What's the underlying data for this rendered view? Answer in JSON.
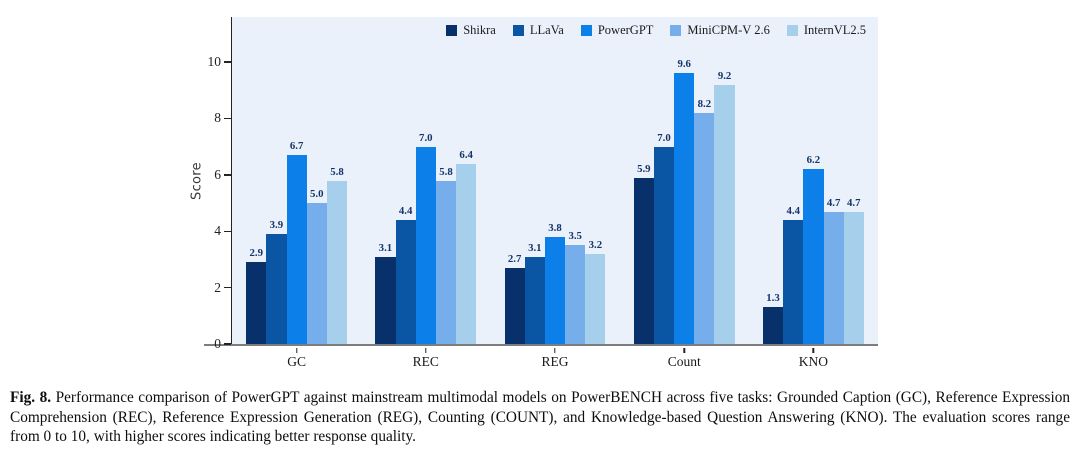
{
  "figure_caption": {
    "label": "Fig. 8.",
    "text": "Performance comparison of PowerGPT against mainstream multimodal models on PowerBENCH across five tasks: Grounded Caption (GC), Reference Expression Comprehension (REC), Reference Expression Generation (REG), Counting (COUNT), and Knowledge-based Question Answering (KNO). The evaluation scores range from 0 to 10, with higher scores indicating better response quality."
  },
  "chart_data": {
    "type": "bar",
    "title": "",
    "xlabel": "",
    "ylabel": "Score",
    "categories": [
      "GC",
      "REC",
      "REG",
      "Count",
      "KNO"
    ],
    "series": [
      {
        "name": "Shikra",
        "color": "#08306b",
        "values": [
          2.9,
          3.1,
          2.7,
          5.9,
          1.3
        ]
      },
      {
        "name": "LLaVa",
        "color": "#0a55a4",
        "values": [
          3.9,
          4.4,
          3.1,
          7.0,
          4.4
        ]
      },
      {
        "name": "PowerGPT",
        "color": "#0d7fe8",
        "values": [
          6.7,
          7.0,
          3.8,
          9.6,
          6.2
        ]
      },
      {
        "name": "MiniCPM-V 2.6",
        "color": "#76aeec",
        "values": [
          5.0,
          5.8,
          3.5,
          8.2,
          4.7
        ]
      },
      {
        "name": "InternVL2.5",
        "color": "#a6cfeb",
        "values": [
          5.8,
          6.4,
          3.2,
          9.2,
          4.7
        ]
      }
    ],
    "yticks": [
      0,
      2,
      4,
      6,
      8,
      10
    ],
    "ylim": [
      0,
      11.6
    ],
    "value_label_decimals": 1,
    "value_label_color": "#14356b",
    "legend_position": "top-right",
    "grid": false,
    "plot_background": "#eaf1fa"
  }
}
